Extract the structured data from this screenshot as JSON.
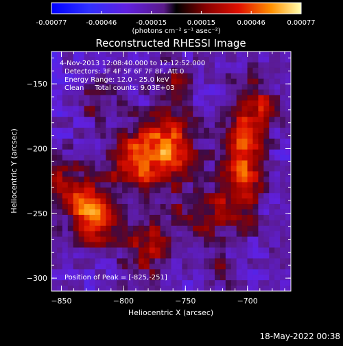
{
  "chart_data": {
    "type": "heatmap",
    "title": "Reconstructed RHESSI Image",
    "xlabel": "Heliocentric X (arcsec)",
    "ylabel": "Heliocentric Y (arcsec)",
    "xlim": [
      -858,
      -665
    ],
    "ylim": [
      -310,
      -125
    ],
    "xticks": [
      -850,
      -800,
      -750,
      -700
    ],
    "yticks": [
      -150,
      -200,
      -250,
      -300
    ],
    "colorbar": {
      "ticks": [
        "-0.00077",
        "-0.00046",
        "-0.00015",
        "0.00015",
        "0.00046",
        "0.00077"
      ],
      "range": [
        -0.00077,
        0.00077
      ],
      "unit_label": "(photons cm⁻² s⁻¹ asec⁻²)"
    },
    "info_lines": [
      "4-Nov-2013 12:08:40.000 to 12:12:52.000",
      "Detectors: 3F 4F 5F 6F 7F 8F, Att 0",
      "Energy Range: 12.0 - 25.0 keV",
      "Clean     Total counts: 9.03E+03"
    ],
    "peak_label": "Position of Peak = [-825,-251]",
    "peak": [
      -825,
      -251
    ],
    "sources": [
      {
        "x": -825,
        "y": -251,
        "sx": 12,
        "sy": 14,
        "amp": 1.0
      },
      {
        "x": -784,
        "y": -208,
        "sx": 20,
        "sy": 18,
        "amp": 0.78
      },
      {
        "x": -760,
        "y": -195,
        "sx": 14,
        "sy": 16,
        "amp": 0.55
      },
      {
        "x": -703,
        "y": -210,
        "sx": 11,
        "sy": 30,
        "amp": 0.82
      },
      {
        "x": -690,
        "y": -165,
        "sx": 10,
        "sy": 12,
        "amp": 0.45
      },
      {
        "x": -848,
        "y": -228,
        "sx": 12,
        "sy": 12,
        "amp": 0.55
      },
      {
        "x": -782,
        "y": -275,
        "sx": 14,
        "sy": 18,
        "amp": 0.5
      },
      {
        "x": -735,
        "y": -248,
        "sx": 18,
        "sy": 14,
        "amp": 0.45
      },
      {
        "x": -822,
        "y": -165,
        "sx": 10,
        "sy": 10,
        "amp": 0.35
      },
      {
        "x": -760,
        "y": -150,
        "sx": 12,
        "sy": 10,
        "amp": 0.35
      },
      {
        "x": -720,
        "y": -295,
        "sx": 10,
        "sy": 10,
        "amp": 0.25
      }
    ]
  },
  "footer": {
    "timestamp": "18-May-2022 00:38"
  }
}
